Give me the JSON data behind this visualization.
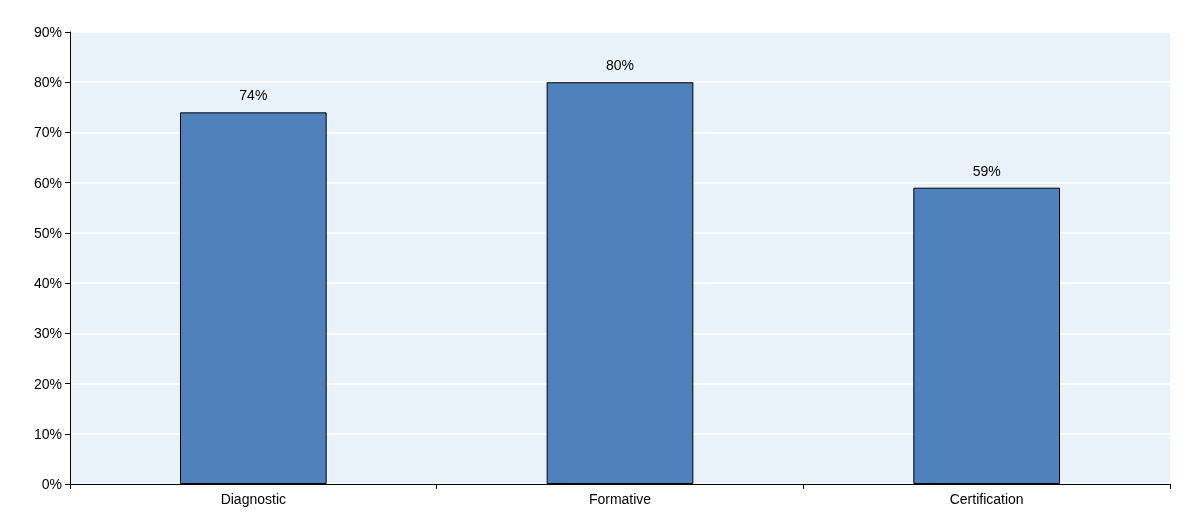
{
  "chart_data": {
    "type": "bar",
    "categories": [
      "Diagnostic",
      "Formative",
      "Certification"
    ],
    "values": [
      74,
      80,
      59
    ],
    "value_labels": [
      "74%",
      "80%",
      "59%"
    ],
    "color": "#4f81bd",
    "ylim": [
      0,
      90
    ],
    "yticks": [
      {
        "value": 0,
        "label": "0%"
      },
      {
        "value": 10,
        "label": "10%"
      },
      {
        "value": 20,
        "label": "20%"
      },
      {
        "value": 30,
        "label": "30%"
      },
      {
        "value": 40,
        "label": "40%"
      },
      {
        "value": 50,
        "label": "50%"
      },
      {
        "value": 60,
        "label": "60%"
      },
      {
        "value": 70,
        "label": "70%"
      },
      {
        "value": 80,
        "label": "80%"
      },
      {
        "value": 90,
        "label": "90%"
      }
    ],
    "grid": "y"
  }
}
